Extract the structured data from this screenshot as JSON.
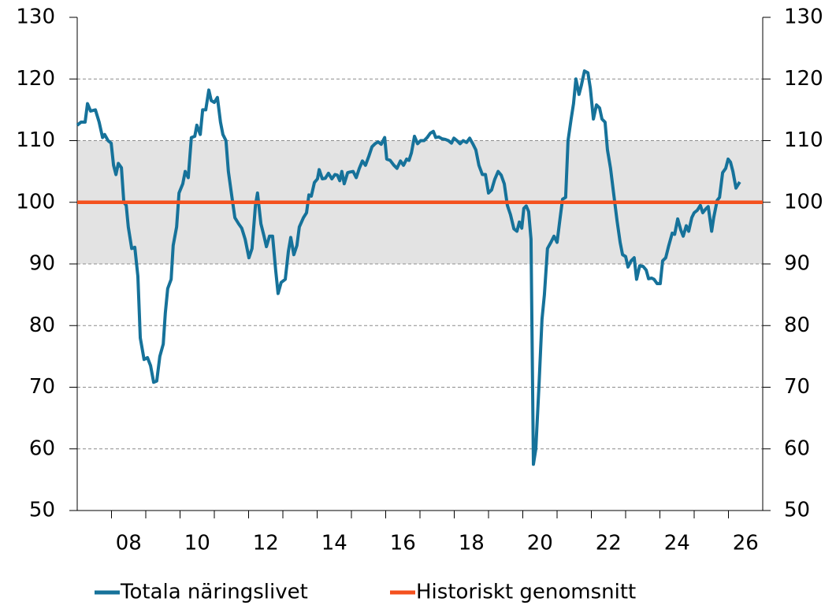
{
  "chart_data": {
    "type": "line",
    "xlim": [
      2007,
      2027
    ],
    "xticks": [
      {
        "value": 2008.5,
        "label": "08"
      },
      {
        "value": 2010.5,
        "label": "10"
      },
      {
        "value": 2012.5,
        "label": "12"
      },
      {
        "value": 2014.5,
        "label": "14"
      },
      {
        "value": 2016.5,
        "label": "16"
      },
      {
        "value": 2018.5,
        "label": "18"
      },
      {
        "value": 2020.5,
        "label": "20"
      },
      {
        "value": 2022.5,
        "label": "22"
      },
      {
        "value": 2024.5,
        "label": "24"
      },
      {
        "value": 2026.5,
        "label": "26"
      }
    ],
    "xminorticks": [
      2008,
      2009,
      2010,
      2011,
      2012,
      2013,
      2014,
      2015,
      2016,
      2017,
      2018,
      2019,
      2020,
      2021,
      2022,
      2023,
      2024,
      2025,
      2026
    ],
    "ylim": [
      50,
      130
    ],
    "yticks": [
      50,
      60,
      70,
      80,
      90,
      100,
      110,
      120,
      130
    ],
    "y2lim": [
      50,
      130
    ],
    "y2ticks": [
      50,
      60,
      70,
      80,
      90,
      100,
      110,
      120,
      130
    ],
    "grid": true,
    "band": [
      90,
      110
    ],
    "band_color": "#e3e3e3",
    "series": [
      {
        "name": "Totala näringslivet",
        "color": "#16729a",
        "x": [
          2007.0,
          2007.11,
          2007.23,
          2007.3,
          2007.39,
          2007.53,
          2007.64,
          2007.74,
          2007.8,
          2007.9,
          2007.99,
          2008.06,
          2008.13,
          2008.2,
          2008.29,
          2008.36,
          2008.43,
          2008.49,
          2008.59,
          2008.68,
          2008.77,
          2008.84,
          2008.95,
          2009.05,
          2009.14,
          2009.23,
          2009.32,
          2009.41,
          2009.51,
          2009.57,
          2009.64,
          2009.74,
          2009.8,
          2009.9,
          2009.97,
          2010.08,
          2010.15,
          2010.24,
          2010.33,
          2010.43,
          2010.49,
          2010.59,
          2010.66,
          2010.75,
          2010.84,
          2010.91,
          2011.0,
          2011.09,
          2011.18,
          2011.25,
          2011.34,
          2011.41,
          2011.51,
          2011.6,
          2011.71,
          2011.8,
          2011.9,
          2012.01,
          2012.1,
          2012.2,
          2012.26,
          2012.36,
          2012.45,
          2012.52,
          2012.61,
          2012.7,
          2012.79,
          2012.86,
          2012.95,
          2013.07,
          2013.16,
          2013.23,
          2013.32,
          2013.41,
          2013.48,
          2013.6,
          2013.69,
          2013.76,
          2013.83,
          2013.92,
          2014.01,
          2014.06,
          2014.15,
          2014.24,
          2014.33,
          2014.43,
          2014.52,
          2014.59,
          2014.66,
          2014.72,
          2014.79,
          2014.89,
          2014.95,
          2015.05,
          2015.14,
          2015.23,
          2015.32,
          2015.41,
          2015.51,
          2015.6,
          2015.69,
          2015.78,
          2015.87,
          2015.97,
          2016.03,
          2016.13,
          2016.24,
          2016.33,
          2016.43,
          2016.52,
          2016.61,
          2016.68,
          2016.75,
          2016.84,
          2016.93,
          2017.02,
          2017.12,
          2017.21,
          2017.3,
          2017.39,
          2017.46,
          2017.55,
          2017.64,
          2017.74,
          2017.83,
          2017.92,
          2017.99,
          2018.08,
          2018.17,
          2018.26,
          2018.36,
          2018.45,
          2018.54,
          2018.63,
          2018.72,
          2018.82,
          2018.91,
          2019.0,
          2019.09,
          2019.18,
          2019.28,
          2019.37,
          2019.46,
          2019.55,
          2019.64,
          2019.74,
          2019.83,
          2019.9,
          2019.97,
          2020.03,
          2020.1,
          2020.17,
          2020.24,
          2020.31,
          2020.38,
          2020.47,
          2020.56,
          2020.63,
          2020.72,
          2020.82,
          2020.91,
          2021.0,
          2021.09,
          2021.16,
          2021.25,
          2021.32,
          2021.41,
          2021.48,
          2021.55,
          2021.64,
          2021.71,
          2021.8,
          2021.9,
          2021.97,
          2022.06,
          2022.15,
          2022.24,
          2022.31,
          2022.4,
          2022.47,
          2022.56,
          2022.66,
          2022.75,
          2022.84,
          2022.91,
          2023.0,
          2023.07,
          2023.16,
          2023.25,
          2023.32,
          2023.41,
          2023.51,
          2023.6,
          2023.67,
          2023.76,
          2023.83,
          2023.92,
          2024.01,
          2024.08,
          2024.17,
          2024.26,
          2024.36,
          2024.43,
          2024.52,
          2024.61,
          2024.68,
          2024.77,
          2024.84,
          2024.93,
          2025.0,
          2025.09,
          2025.18,
          2025.25,
          2025.35,
          2025.41,
          2025.51,
          2025.57,
          2025.67,
          2025.74,
          2025.83,
          2025.92,
          2025.99,
          2026.06,
          2026.13,
          2026.22,
          2026.33
        ],
        "values": [
          112.5,
          113,
          113,
          116,
          114.8,
          115,
          113,
          110.5,
          111,
          110,
          109.6,
          106,
          104.5,
          106.3,
          105.6,
          100,
          99.5,
          96,
          92.5,
          92.7,
          88,
          78,
          74.5,
          74.8,
          73.5,
          70.8,
          71,
          75,
          77,
          82,
          86,
          87.5,
          93,
          96,
          101.5,
          103,
          105,
          104,
          110.5,
          110.7,
          112.5,
          111,
          115,
          115,
          118.2,
          116.5,
          116.2,
          117,
          113,
          111,
          110,
          105,
          101,
          97.5,
          96.5,
          95.8,
          94,
          91,
          92.5,
          99.5,
          101.5,
          96.5,
          94.5,
          92.8,
          94.5,
          94.5,
          89,
          85.2,
          87,
          87.5,
          92,
          94.3,
          91.5,
          93,
          96,
          97.5,
          98.3,
          101.2,
          101,
          103.2,
          103.8,
          105.3,
          103.8,
          103.9,
          104.7,
          103.8,
          104.5,
          104.4,
          103.5,
          105,
          103,
          104.8,
          104.9,
          105,
          104,
          105.5,
          106.7,
          106,
          107.5,
          109,
          109.5,
          109.8,
          109.4,
          110.5,
          107,
          106.8,
          106,
          105.5,
          106.7,
          106,
          107,
          106.8,
          108,
          110.7,
          109.5,
          110,
          110,
          110.5,
          111.2,
          111.5,
          110.5,
          110.6,
          110.3,
          110.2,
          110,
          109.6,
          110.4,
          110,
          109.5,
          110,
          109.7,
          110.4,
          109.5,
          108.5,
          106,
          104.5,
          104.5,
          101.5,
          102,
          103.7,
          105,
          104.4,
          103,
          99.5,
          98,
          95.7,
          95.3,
          96.8,
          95.8,
          99,
          99.4,
          98.5,
          94,
          57.5,
          60,
          70,
          81,
          85,
          92.5,
          93.5,
          94.5,
          93.5,
          97.5,
          100.5,
          100.8,
          110,
          113.5,
          116,
          120,
          117.5,
          119,
          121.3,
          121,
          118.5,
          113.5,
          115.8,
          115.3,
          113.5,
          113,
          108.5,
          105.5,
          101,
          97,
          93.5,
          91.5,
          91.2,
          89.5,
          90.5,
          91,
          87.5,
          89.7,
          89.6,
          89,
          87.6,
          87.7,
          87.5,
          86.8,
          86.8,
          90.5,
          91,
          93,
          95,
          94.8,
          97.3,
          95.5,
          94.5,
          96.2,
          95.3,
          97.5,
          98.3,
          98.7,
          99.5,
          98.3,
          99,
          99.3,
          95.3,
          97.5,
          100.3,
          100.8,
          104.8,
          105.5,
          107,
          106.5,
          105,
          102.3,
          103.3
        ]
      },
      {
        "name": "Historiskt genomsnitt",
        "color": "#f4511e",
        "x": [
          2007,
          2027
        ],
        "values": [
          100,
          100
        ]
      }
    ]
  }
}
